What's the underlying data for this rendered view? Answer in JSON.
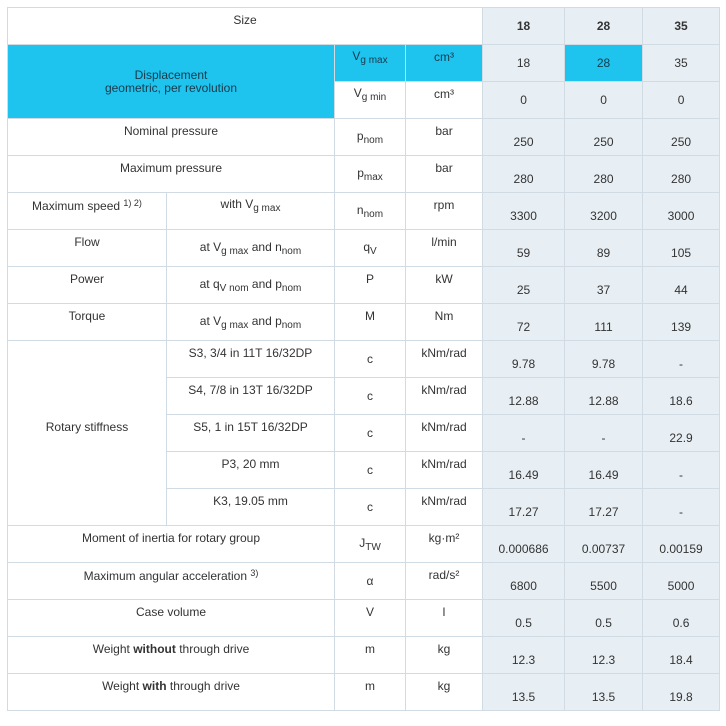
{
  "header": {
    "label": "Size",
    "sizes": [
      "18",
      "28",
      "35"
    ]
  },
  "displacement": {
    "label_line1": "Displacement",
    "label_line2": "geometric, per revolution",
    "rows": [
      {
        "sym": "V",
        "sub": "g max",
        "unit": "cm³",
        "values": [
          "18",
          "28",
          "35"
        ]
      },
      {
        "sym": "V",
        "sub": "g min",
        "unit": "cm³",
        "values": [
          "0",
          "0",
          "0"
        ]
      }
    ]
  },
  "nominal_pressure": {
    "label": "Nominal pressure",
    "sym": "p",
    "sub": "nom",
    "unit": "bar",
    "values": [
      "250",
      "250",
      "250"
    ]
  },
  "maximum_pressure": {
    "label": "Maximum pressure",
    "sym": "p",
    "sub": "max",
    "unit": "bar",
    "values": [
      "280",
      "280",
      "280"
    ]
  },
  "maximum_speed": {
    "label": "Maximum speed",
    "note": "1) 2)",
    "cond": "with V",
    "cond_sub": "g max",
    "sym": "n",
    "sub": "nom",
    "unit": "rpm",
    "values": [
      "3300",
      "3200",
      "3000"
    ]
  },
  "flow": {
    "label": "Flow",
    "cond_a": "at V",
    "cond_a_sub": "g max",
    "cond_b": "and n",
    "cond_b_sub": "nom",
    "sym": "q",
    "sub": "V",
    "unit": "l/min",
    "values": [
      "59",
      "89",
      "105"
    ]
  },
  "power": {
    "label": "Power",
    "cond_a": "at q",
    "cond_a_sub": "V nom",
    "cond_b": "and p",
    "cond_b_sub": "nom",
    "sym": "P",
    "unit": "kW",
    "values": [
      "25",
      "37",
      "44"
    ]
  },
  "torque": {
    "label": "Torque",
    "cond_a": "at V",
    "cond_a_sub": "g max",
    "cond_b": "and p",
    "cond_b_sub": "nom",
    "sym": "M",
    "unit": "Nm",
    "values": [
      "72",
      "111",
      "139"
    ]
  },
  "rotary_stiffness": {
    "label": "Rotary stiffness",
    "rows": [
      {
        "shaft": "S3, 3/4 in 11T 16/32DP",
        "sym": "c",
        "unit": "kNm/rad",
        "values": [
          "9.78",
          "9.78",
          "-"
        ]
      },
      {
        "shaft": "S4, 7/8 in 13T 16/32DP",
        "sym": "c",
        "unit": "kNm/rad",
        "values": [
          "12.88",
          "12.88",
          "18.6"
        ]
      },
      {
        "shaft": "S5, 1 in 15T 16/32DP",
        "sym": "c",
        "unit": "kNm/rad",
        "values": [
          "-",
          "-",
          "22.9"
        ]
      },
      {
        "shaft": "P3, 20 mm",
        "sym": "c",
        "unit": "kNm/rad",
        "values": [
          "16.49",
          "16.49",
          "-"
        ]
      },
      {
        "shaft": "K3, 19.05 mm",
        "sym": "c",
        "unit": "kNm/rad",
        "values": [
          "17.27",
          "17.27",
          "-"
        ]
      }
    ]
  },
  "moment_of_inertia": {
    "label": "Moment of inertia for rotary group",
    "sym": "J",
    "sub": "TW",
    "unit": "kg·m²",
    "values": [
      "0.000686",
      "0.00737",
      "0.00159"
    ]
  },
  "angular_acceleration": {
    "label": "Maximum angular acceleration",
    "note": "3)",
    "sym": "α",
    "unit": "rad/s²",
    "values": [
      "6800",
      "5500",
      "5000"
    ]
  },
  "case_volume": {
    "label": "Case volume",
    "sym": "V",
    "unit": "l",
    "values": [
      "0.5",
      "0.5",
      "0.6"
    ]
  },
  "weight_without": {
    "label_a": "Weight ",
    "label_bold": "without",
    "label_b": " through drive",
    "sym": "m",
    "unit": "kg",
    "values": [
      "12.3",
      "12.3",
      "18.4"
    ]
  },
  "weight_with": {
    "label_a": "Weight ",
    "label_bold": "with",
    "label_b": " through drive",
    "sym": "m",
    "unit": "kg",
    "values": [
      "13.5",
      "13.5",
      "19.8"
    ]
  }
}
